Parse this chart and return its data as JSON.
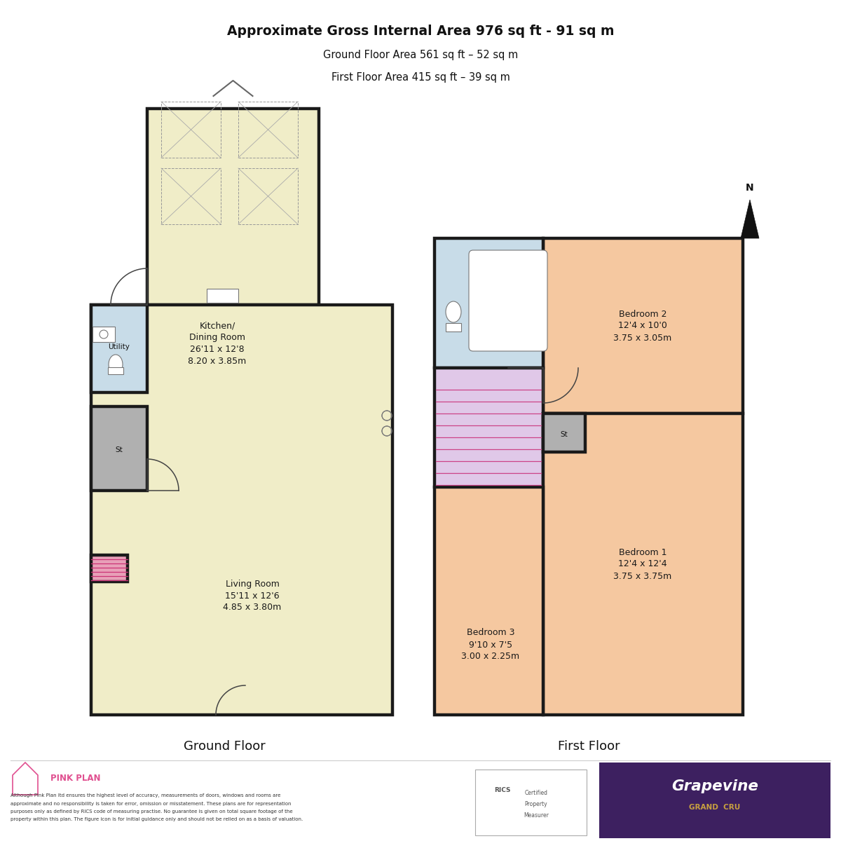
{
  "title_line1": "Approximate Gross Internal Area 976 sq ft - 91 sq m",
  "title_line2": "Ground Floor Area 561 sq ft – 52 sq m",
  "title_line3": "First Floor Area 415 sq ft – 39 sq m",
  "wall_color": "#1a1a1a",
  "floor_fill": "#f0edc8",
  "bathroom_fill": "#c8dce8",
  "bedroom_fill": "#f5c8a0",
  "landing_fill": "#e0c8e8",
  "storage_fill": "#b0b0b0",
  "pink_accent": "#e8a0b8",
  "footer_bg": "#3d2060",
  "brand_gold": "#c8a040",
  "ground_floor_label": "Ground Floor",
  "first_floor_label": "First Floor",
  "disclaimer": "Although Pink Plan ltd ensures the highest level of accuracy, measurements of doors, windows and rooms are approximate and no responsibility is taken for error, omission or misstatement. These plans are for representation purposes only as defined by RICS code of measuring practise. No guarantee is given on total square footage of the property within this plan. The figure icon is for initial guidance only and should not be relied on as a basis of valuation."
}
